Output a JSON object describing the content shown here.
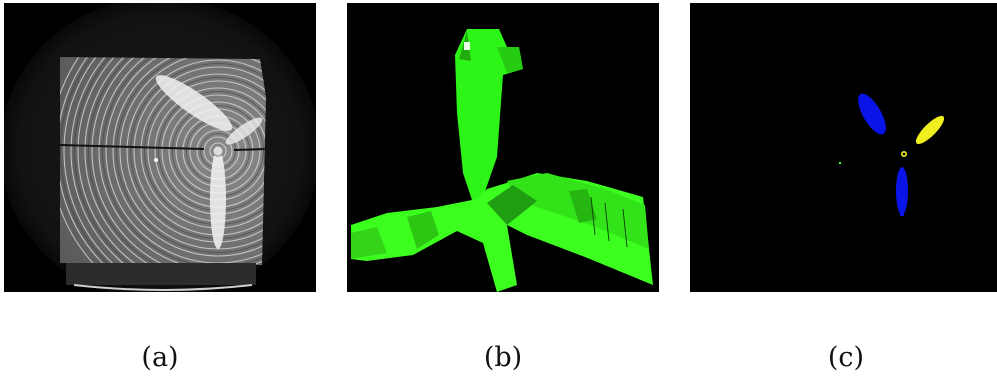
{
  "figure": {
    "panels": [
      {
        "id": "a",
        "caption": "(a)",
        "description": "ct-slice"
      },
      {
        "id": "b",
        "caption": "(b)",
        "description": "3d-reconstruction"
      },
      {
        "id": "c",
        "caption": "(c)",
        "description": "segmentation"
      }
    ],
    "colors": {
      "background": "#000000",
      "reconstruction": "#33ff22",
      "segment_primary": "#0a14e6",
      "segment_secondary": "#f0f020"
    }
  }
}
